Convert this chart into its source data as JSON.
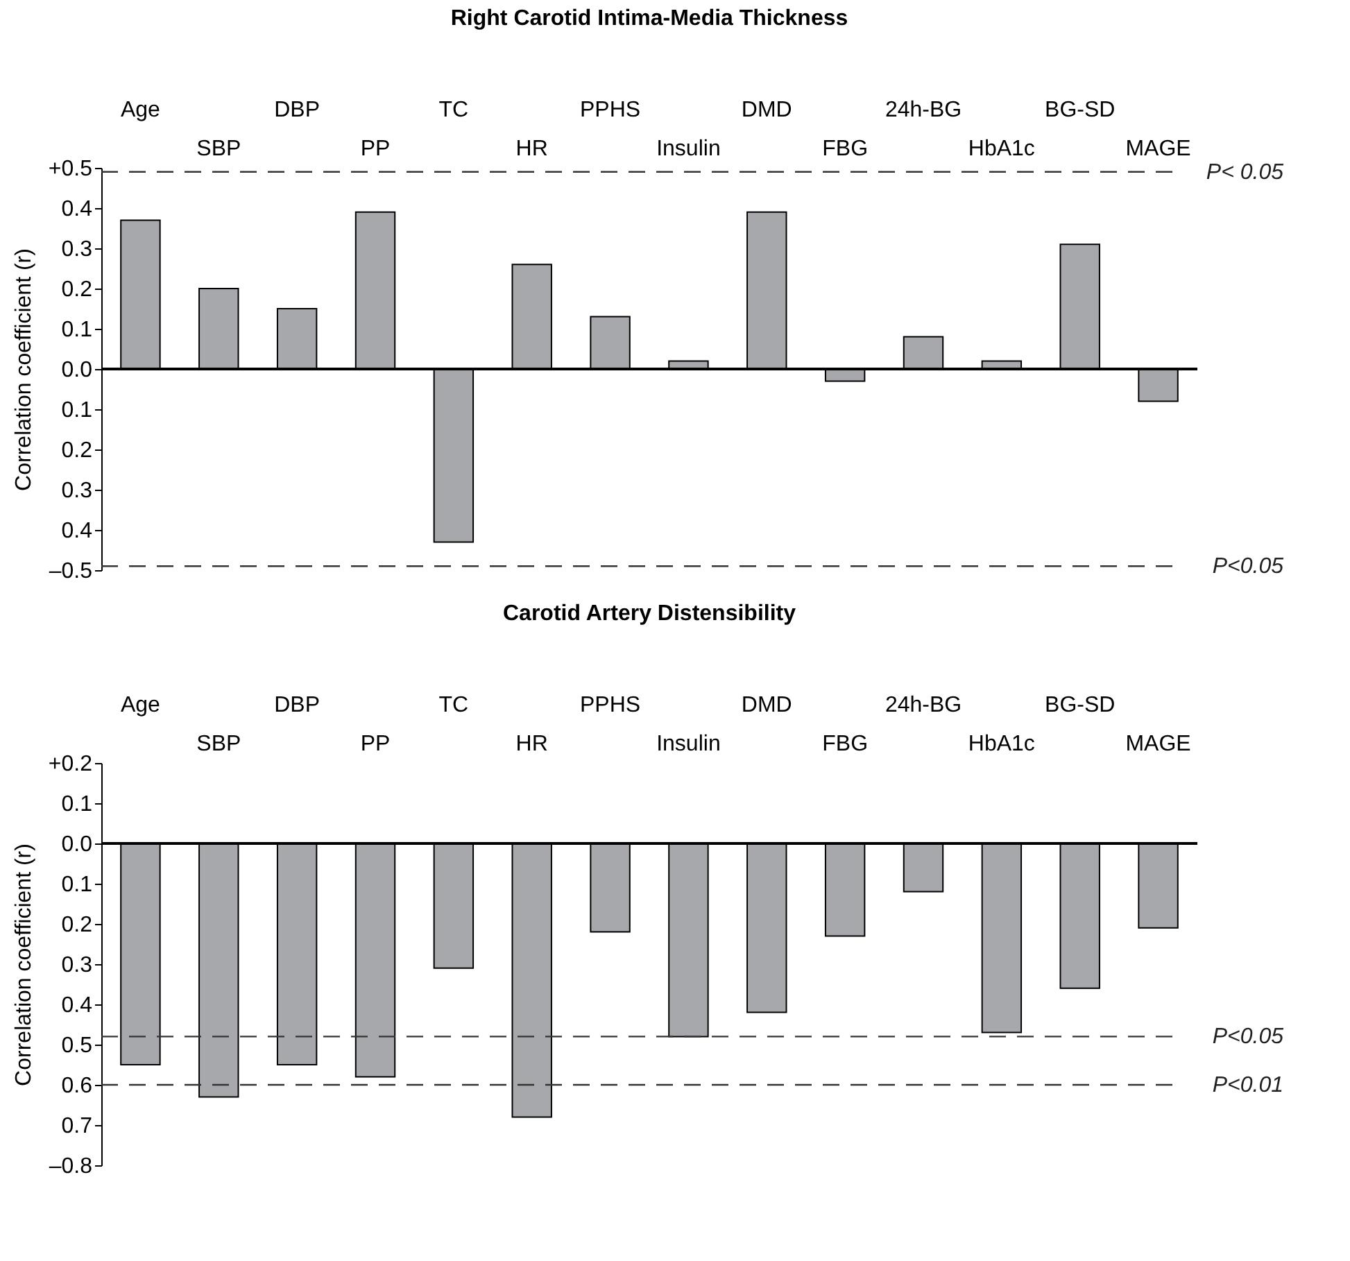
{
  "chart_data": [
    {
      "type": "bar",
      "title": "Right Carotid Intima-Media Thickness",
      "ylabel": "Correlation coefficient (r)",
      "color": "#a7a8ab",
      "categories": [
        "Age",
        "SBP",
        "DBP",
        "PP",
        "TC",
        "HR",
        "PPHS",
        "Insulin",
        "DMD",
        "FBG",
        "24h-BG",
        "HbA1c",
        "BG-SD",
        "MAGE"
      ],
      "values": [
        0.37,
        0.2,
        0.15,
        0.39,
        -0.43,
        0.26,
        0.13,
        0.02,
        0.39,
        -0.03,
        0.08,
        0.02,
        0.31,
        -0.08
      ],
      "ylim": [
        -0.5,
        0.5
      ],
      "yticks": [
        {
          "value": -0.5,
          "label": "–0.5"
        },
        {
          "value": -0.4,
          "label": "0.4"
        },
        {
          "value": -0.3,
          "label": "0.3"
        },
        {
          "value": -0.2,
          "label": "0.2"
        },
        {
          "value": -0.1,
          "label": "0.1"
        },
        {
          "value": 0.0,
          "label": "0.0"
        },
        0.1,
        0.2,
        0.3,
        0.4,
        {
          "value": 0.5,
          "label": "+0.5"
        }
      ],
      "ref_lines": [
        {
          "axis": "y",
          "value": 0.49,
          "label": "P< 0.05",
          "line_style": "dashed"
        },
        {
          "axis": "y",
          "value": -0.49,
          "label": "P<0.05",
          "line_style": "dashed"
        }
      ]
    },
    {
      "type": "bar",
      "title": "Carotid Artery Distensibility",
      "ylabel": "Correlation coefficient (r)",
      "color": "#a7a8ab",
      "categories": [
        "Age",
        "SBP",
        "DBP",
        "PP",
        "TC",
        "HR",
        "PPHS",
        "Insulin",
        "DMD",
        "FBG",
        "24h-BG",
        "HbA1c",
        "BG-SD",
        "MAGE"
      ],
      "values": [
        -0.55,
        -0.63,
        -0.55,
        -0.58,
        -0.31,
        -0.68,
        -0.22,
        -0.48,
        -0.42,
        -0.23,
        -0.12,
        -0.47,
        -0.36,
        -0.21
      ],
      "ylim": [
        -0.8,
        0.2
      ],
      "yticks": [
        {
          "value": -0.8,
          "label": "–0.8"
        },
        {
          "value": -0.7,
          "label": "0.7"
        },
        {
          "value": -0.6,
          "label": "0.6"
        },
        {
          "value": -0.5,
          "label": "0.5"
        },
        {
          "value": -0.4,
          "label": "0.4"
        },
        {
          "value": -0.3,
          "label": "0.3"
        },
        {
          "value": -0.2,
          "label": "0.2"
        },
        {
          "value": -0.1,
          "label": "0.1"
        },
        {
          "value": 0.0,
          "label": "0.0"
        },
        0.1,
        {
          "value": 0.2,
          "label": "+0.2"
        }
      ],
      "ref_lines": [
        {
          "axis": "y",
          "value": -0.48,
          "label": "P<0.05",
          "line_style": "dashed"
        },
        {
          "axis": "y",
          "value": -0.6,
          "label": "P<0.01",
          "line_style": "dashed"
        }
      ]
    }
  ]
}
